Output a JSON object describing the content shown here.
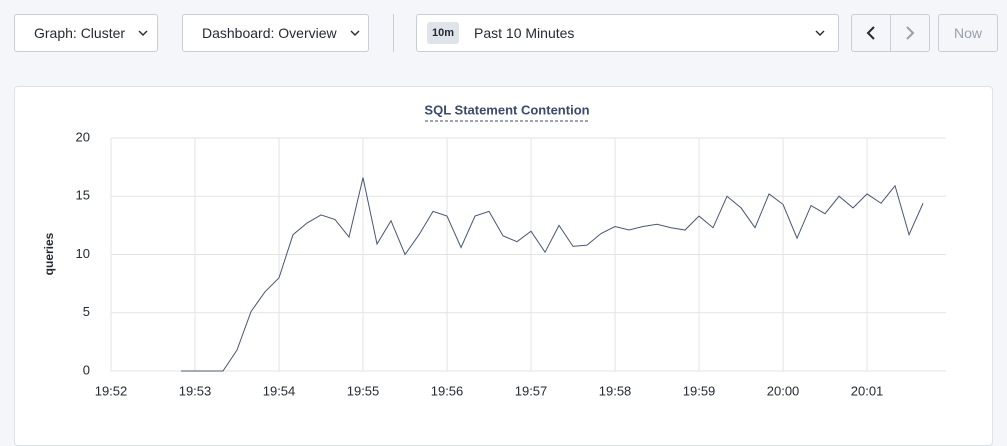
{
  "toolbar": {
    "graph": "Graph: Cluster",
    "dashboard": "Dashboard: Overview",
    "range_badge": "10m",
    "range": "Past 10 Minutes",
    "now": "Now"
  },
  "chart_data": {
    "type": "line",
    "title": "SQL Statement Contention",
    "y_label": "queries",
    "x": [
      1192.8333,
      1193,
      1193.1667,
      1193.3333,
      1193.5,
      1193.6667,
      1193.8333,
      1194,
      1194.1667,
      1194.3333,
      1194.5,
      1194.6667,
      1194.8333,
      1195,
      1195.1667,
      1195.3333,
      1195.5,
      1195.6667,
      1195.8333,
      1196,
      1196.1667,
      1196.3333,
      1196.5,
      1196.6667,
      1196.8333,
      1197,
      1197.1667,
      1197.3333,
      1197.5,
      1197.6667,
      1197.8333,
      1198,
      1198.1667,
      1198.3333,
      1198.5,
      1198.6667,
      1198.8333,
      1199,
      1199.1667,
      1199.3333,
      1199.5,
      1199.6667,
      1199.8333,
      1200,
      1200.1667,
      1200.3333,
      1200.5,
      1200.6667,
      1200.8333,
      1201,
      1201.1667,
      1201.3333,
      1201.5,
      1201.6667
    ],
    "series": [
      {
        "name": "queries",
        "color": "#475872",
        "values": [
          0,
          0,
          0,
          0,
          1.8,
          5.1,
          6.8,
          8,
          11.7,
          12.7,
          13.4,
          13.0,
          11.5,
          16.6,
          10.9,
          12.9,
          10.0,
          11.7,
          13.7,
          13.3,
          10.6,
          13.3,
          13.7,
          11.6,
          11.1,
          12.0,
          10.2,
          12.5,
          10.7,
          10.8,
          11.8,
          12.4,
          12.1,
          12.4,
          12.6,
          12.3,
          12.1,
          13.3,
          12.3,
          15.0,
          14.0,
          12.3,
          15.2,
          14.3,
          11.4,
          14.2,
          13.5,
          15.0,
          14.0,
          15.2,
          14.4,
          15.9,
          11.7,
          14.4
        ]
      }
    ],
    "xlim": [
      1192,
      1201.94
    ],
    "xticks": [
      {
        "value": 1192,
        "label": "19:52"
      },
      {
        "value": 1193,
        "label": "19:53"
      },
      {
        "value": 1194,
        "label": "19:54"
      },
      {
        "value": 1195,
        "label": "19:55"
      },
      {
        "value": 1196,
        "label": "19:56"
      },
      {
        "value": 1197,
        "label": "19:57"
      },
      {
        "value": 1198,
        "label": "19:58"
      },
      {
        "value": 1199,
        "label": "19:59"
      },
      {
        "value": 1200,
        "label": "20:00"
      },
      {
        "value": 1201,
        "label": "20:01"
      }
    ],
    "ylim": [
      0,
      20
    ],
    "yticks": [
      0,
      5,
      10,
      15,
      20
    ],
    "grid": true
  }
}
